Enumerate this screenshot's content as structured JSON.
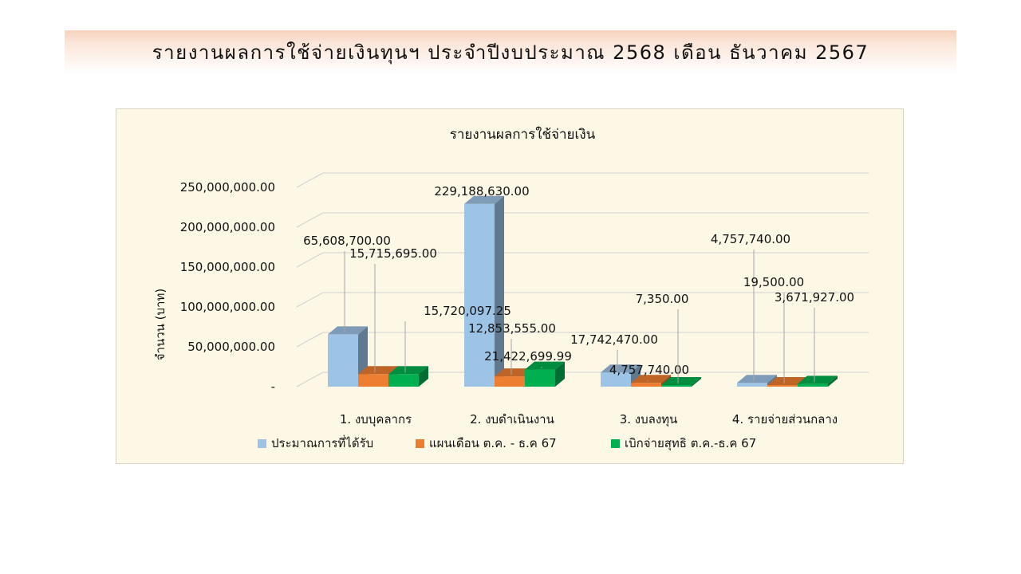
{
  "header": {
    "title": "รายงานผลการใช้จ่ายเงินทุนฯ ประจำปีงบประมาณ 2568 เดือน ธันวาคม 2567"
  },
  "chart_data": {
    "type": "bar",
    "title": "รายงานผลการใช้จ่ายเงิน",
    "xlabel": "",
    "ylabel": "จำนวน (บาท)",
    "ylim": [
      0,
      250000000
    ],
    "yticks": [
      0,
      50000000,
      100000000,
      150000000,
      200000000,
      250000000
    ],
    "ytick_labels": [
      "-",
      "50,000,000.00",
      "100,000,000.00",
      "150,000,000.00",
      "200,000,000.00",
      "250,000,000.00"
    ],
    "grid": true,
    "legend_position": "bottom",
    "categories": [
      "1. งบบุคลากร",
      "2. งบดำเนินงาน",
      "3. งบลงทุน",
      "4. รายจ่ายส่วนกลาง"
    ],
    "series": [
      {
        "name": "ประมาณการที่ได้รับ",
        "color": "#9dc3e6",
        "values": [
          65608700.0,
          229188630.0,
          17742470.0,
          4757740.0
        ],
        "labels": [
          "65,608,700.00",
          "229,188,630.00",
          "17,742,470.00",
          "4,757,740.00"
        ]
      },
      {
        "name": "แผนเดือน ต.ค. - ธ.ค 67",
        "color": "#ed7d31",
        "values": [
          15715695.0,
          12853555.0,
          4757740.0,
          19500.0
        ],
        "labels": [
          "15,715,695.00",
          "12,853,555.00",
          "4,757,740.00",
          "19,500.00"
        ]
      },
      {
        "name": "เบิกจ่ายสุทธิ ต.ค.-ธ.ค 67",
        "color": "#00b050",
        "values": [
          15720097.25,
          21422699.99,
          7350.0,
          3671927.0
        ],
        "labels": [
          "15,720,097.25",
          "21,422,699.99",
          "7,350.00",
          "3,671,927.00"
        ]
      }
    ]
  }
}
